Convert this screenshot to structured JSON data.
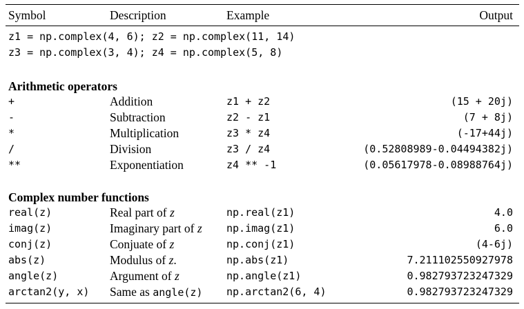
{
  "header": {
    "symbol": "Symbol",
    "description": "Description",
    "example": "Example",
    "output": "Output"
  },
  "setup": [
    "z1 = np.complex(4, 6); z2 = np.complex(11, 14)",
    "z3 = np.complex(3, 4); z4 = np.complex(5, 8)"
  ],
  "sections": {
    "arithmetic": {
      "title": "Arithmetic operators",
      "rows": [
        {
          "symbol": "+",
          "description": "Addition",
          "example": "z1 + z2",
          "output": "(15 + 20j)"
        },
        {
          "symbol": "-",
          "description": "Subtraction",
          "example": "z2 - z1",
          "output": "(7 + 8j)"
        },
        {
          "symbol": "*",
          "description": "Multiplication",
          "example": "z3 * z4",
          "output": "(-17+44j)"
        },
        {
          "symbol": "/",
          "description": "Division",
          "example": "z3 / z4",
          "output": "(0.52808989-0.04494382j)"
        },
        {
          "symbol": "**",
          "description": "Exponentiation",
          "example": "z4 ** -1",
          "output": "(0.05617978-0.08988764j)"
        }
      ]
    },
    "functions": {
      "title": "Complex number functions",
      "rows": [
        {
          "symbol": "real(z)",
          "description": "Real part of ",
          "desc_var": "z",
          "desc_after": "",
          "example": "np.real(z1)",
          "output": "4.0"
        },
        {
          "symbol": "imag(z)",
          "description": "Imaginary part of ",
          "desc_var": "z",
          "desc_after": "",
          "example": "np.imag(z1)",
          "output": "6.0"
        },
        {
          "symbol": "conj(z)",
          "description": "Conjuate of ",
          "desc_var": "z",
          "desc_after": "",
          "example": "np.conj(z1)",
          "output": "(4-6j)"
        },
        {
          "symbol": "abs(z)",
          "description": "Modulus of ",
          "desc_var": "z",
          "desc_after": ".",
          "example": "np.abs(z1)",
          "output": "7.211102550927978"
        },
        {
          "symbol": "angle(z)",
          "description": "Argument of ",
          "desc_var": "z",
          "desc_after": "",
          "example": "np.angle(z1)",
          "output": "0.982793723247329"
        },
        {
          "symbol": "arctan2(y, x)",
          "description": "Same as ",
          "desc_code": "angle(z)",
          "example": "np.arctan2(6, 4)",
          "output": "0.982793723247329"
        }
      ]
    }
  }
}
